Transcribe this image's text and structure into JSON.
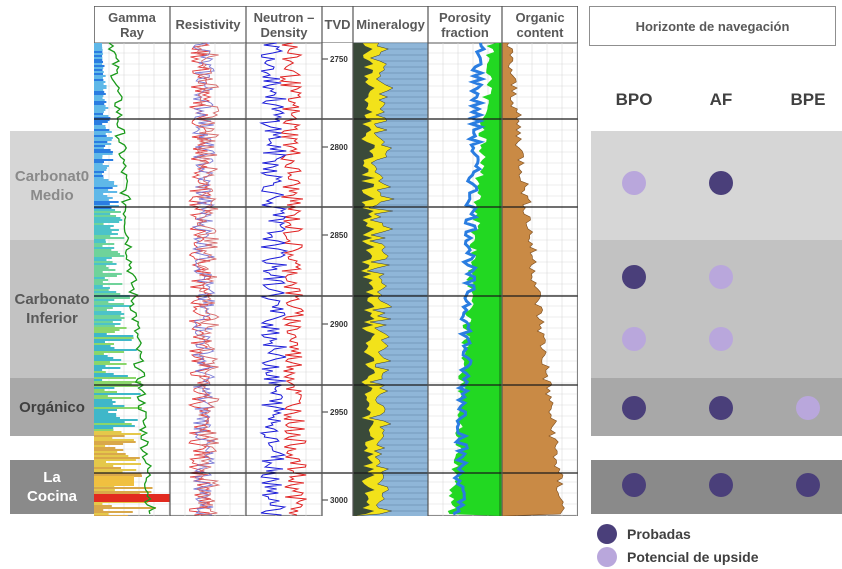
{
  "zones": [
    {
      "id": "carbonato-medio",
      "label": "Carbonat0\nMedio",
      "bg": "#d6d6d6",
      "fg": "#8a8a8a"
    },
    {
      "id": "carbonato-inferior",
      "label": "Carbonato\nInferior",
      "bg": "#c2c2c2",
      "fg": "#595959"
    },
    {
      "id": "organico",
      "label": "Orgánico",
      "bg": "#a8a8a8",
      "fg": "#404040"
    },
    {
      "id": "la-cocina",
      "label": "La\nCocina",
      "bg": "#8a8a8a",
      "fg": "#ffffff"
    }
  ],
  "tracks": [
    {
      "id": "gamma-ray",
      "header": "Gamma\nRay"
    },
    {
      "id": "resistivity",
      "header": "Resistivity"
    },
    {
      "id": "neutron-density",
      "header": "Neutron –\nDensity"
    },
    {
      "id": "tvd",
      "header": "TVD"
    },
    {
      "id": "mineralogy",
      "header": "Mineralogy"
    },
    {
      "id": "porosity",
      "header": "Porosity\nfraction"
    },
    {
      "id": "organic",
      "header": "Organic\ncontent"
    }
  ],
  "depth_ticks": [
    "2750",
    "2800",
    "2850",
    "2900",
    "2950",
    "3000"
  ],
  "navigation": {
    "title": "Horizonte de navegación",
    "columns": [
      "BPO",
      "AF",
      "BPE"
    ],
    "rows": [
      {
        "zone": "carbonato-medio",
        "dots": [
          "upside",
          "probadas",
          null
        ]
      },
      {
        "zone": "carbonato-inferior",
        "dots": [
          "probadas",
          "upside",
          null
        ]
      },
      {
        "zone": "carbonato-inferior",
        "dots": [
          "upside",
          "upside",
          null
        ]
      },
      {
        "zone": "organico",
        "dots": [
          "probadas",
          "probadas",
          "upside"
        ]
      },
      {
        "zone": "la-cocina",
        "dots": [
          "probadas",
          "probadas",
          "probadas"
        ]
      }
    ]
  },
  "legend": {
    "probadas": {
      "label": "Probadas",
      "color": "#4a3f7a"
    },
    "upside": {
      "label": "Potencial de upside",
      "color": "#b9a7dc"
    }
  }
}
